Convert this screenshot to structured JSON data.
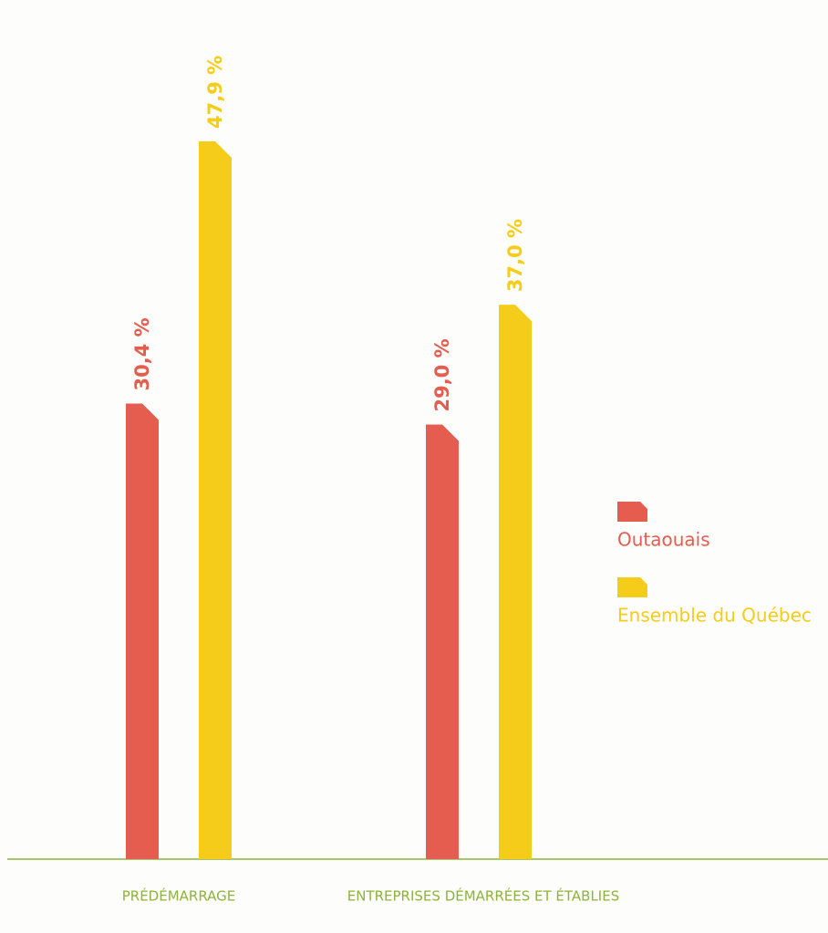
{
  "chart_data": {
    "type": "bar",
    "categories": [
      "PRÉDÉMARRAGE",
      "ENTREPRISES DÉMARRÉES ET ÉTABLIES"
    ],
    "series": [
      {
        "name": "Outaouais",
        "color": "#e55d4f",
        "values": [
          30.4,
          29.0
        ],
        "value_labels": [
          "30,4 %",
          "29,0 %"
        ]
      },
      {
        "name": "Ensemble du Québec",
        "color": "#f5cc1a",
        "values": [
          47.9,
          37.0
        ],
        "value_labels": [
          "47,9 %",
          "37,0 %"
        ]
      }
    ],
    "legend": "right",
    "axis_color": "#8db33a"
  }
}
